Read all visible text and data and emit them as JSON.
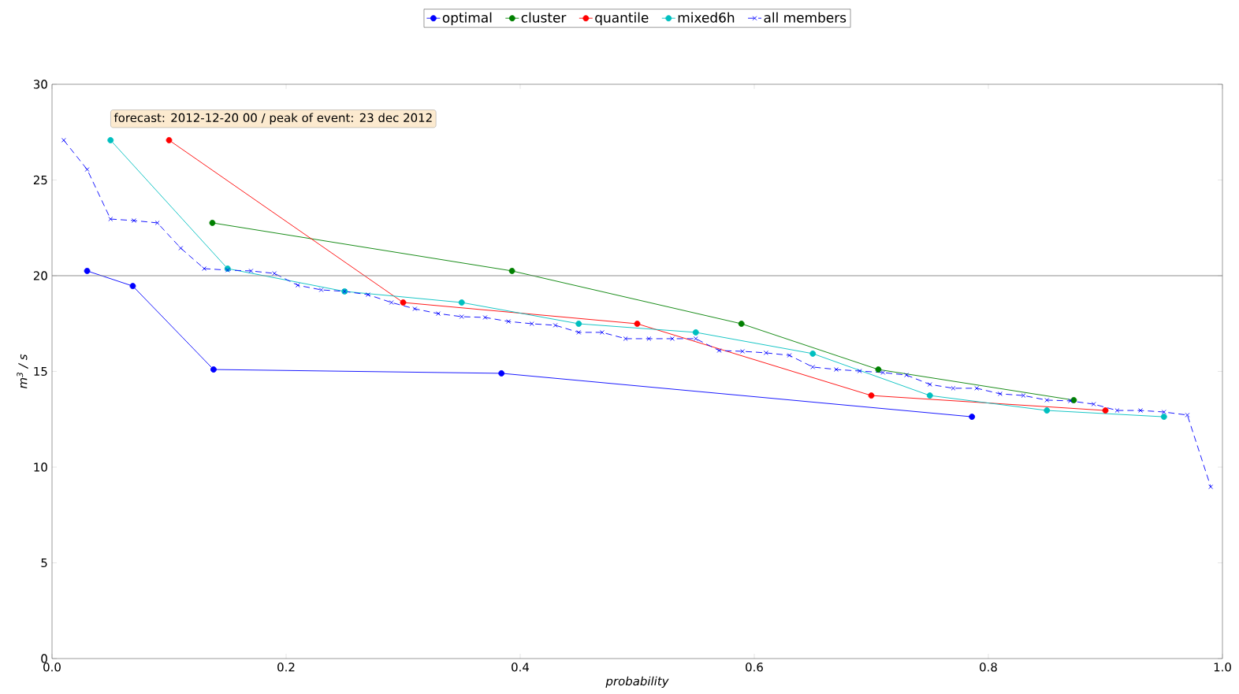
{
  "chart_data": {
    "type": "line",
    "xlabel": "probability",
    "ylabel": "m$^{3}$ / s",
    "xlim": [
      0,
      1
    ],
    "ylim": [
      0,
      30
    ],
    "xticks": [
      {
        "value": 0,
        "label": "0.0"
      },
      0.2,
      0.4,
      0.6,
      0.8,
      {
        "value": 1,
        "label": "1.0"
      }
    ],
    "yticks": [
      0,
      5,
      10,
      15,
      20,
      25,
      30
    ],
    "legend": "top",
    "grid": false,
    "annotations": [
      "forecast: 2012-12-20 00 / peak of event: 23 dec 2012"
    ],
    "ref_lines": [
      {
        "axis": "y",
        "value": 20,
        "color": "#808080"
      }
    ],
    "series": [
      {
        "name": "optimal",
        "color": "#0000ff",
        "marker": "circle",
        "line_style": "solid",
        "x": [
          0.03,
          0.069,
          0.138,
          0.384,
          0.786
        ],
        "values": [
          20.25,
          19.46,
          15.1,
          14.9,
          12.63
        ]
      },
      {
        "name": "cluster",
        "color": "#008000",
        "marker": "circle",
        "line_style": "solid",
        "x": [
          0.137,
          0.393,
          0.589,
          0.706,
          0.873
        ],
        "values": [
          22.76,
          20.25,
          17.49,
          15.1,
          13.5
        ]
      },
      {
        "name": "quantile",
        "color": "#ff0000",
        "marker": "circle",
        "line_style": "solid",
        "x": [
          0.1,
          0.3,
          0.5,
          0.7,
          0.9
        ],
        "values": [
          27.08,
          18.6,
          17.49,
          13.74,
          12.96
        ]
      },
      {
        "name": "mixed6h",
        "color": "#00bfbf",
        "marker": "circle",
        "line_style": "solid",
        "x": [
          0.05,
          0.15,
          0.25,
          0.35,
          0.45,
          0.55,
          0.65,
          0.75,
          0.85,
          0.95
        ],
        "values": [
          27.08,
          20.37,
          19.18,
          18.6,
          17.49,
          17.04,
          15.93,
          13.74,
          12.96,
          12.63
        ]
      },
      {
        "name": "all members",
        "color": "#0000ff",
        "marker": "cross",
        "line_style": "dashed",
        "x": [
          0.01,
          0.03,
          0.05,
          0.07,
          0.09,
          0.11,
          0.13,
          0.15,
          0.17,
          0.19,
          0.21,
          0.23,
          0.25,
          0.27,
          0.29,
          0.31,
          0.33,
          0.35,
          0.37,
          0.39,
          0.41,
          0.43,
          0.45,
          0.47,
          0.49,
          0.51,
          0.53,
          0.55,
          0.57,
          0.59,
          0.61,
          0.63,
          0.65,
          0.67,
          0.69,
          0.71,
          0.73,
          0.75,
          0.77,
          0.79,
          0.81,
          0.83,
          0.85,
          0.87,
          0.89,
          0.91,
          0.93,
          0.95,
          0.97,
          0.99
        ],
        "values": [
          27.08,
          25.55,
          22.96,
          22.88,
          22.76,
          21.44,
          20.37,
          20.29,
          20.25,
          20.12,
          19.5,
          19.26,
          19.18,
          19.01,
          18.6,
          18.27,
          18.02,
          17.86,
          17.82,
          17.61,
          17.49,
          17.41,
          17.04,
          17.04,
          16.71,
          16.71,
          16.71,
          16.71,
          16.09,
          16.05,
          15.97,
          15.84,
          15.23,
          15.1,
          15.02,
          14.94,
          14.81,
          14.32,
          14.12,
          14.12,
          13.83,
          13.74,
          13.5,
          13.46,
          13.29,
          12.96,
          12.96,
          12.88,
          12.72,
          8.97
        ]
      }
    ]
  }
}
